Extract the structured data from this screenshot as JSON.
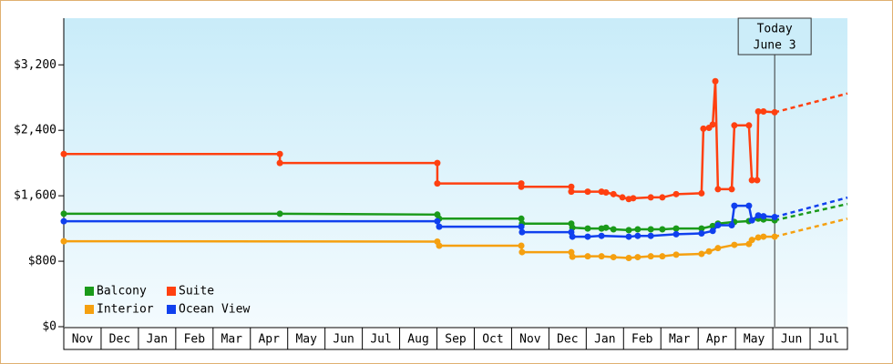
{
  "chart_data": {
    "type": "line",
    "xlim": [
      0,
      21
    ],
    "xticks": [
      {
        "value": 0.5,
        "label": "Nov"
      },
      {
        "value": 1.5,
        "label": "Dec"
      },
      {
        "value": 2.5,
        "label": "Jan"
      },
      {
        "value": 3.5,
        "label": "Feb"
      },
      {
        "value": 4.5,
        "label": "Mar"
      },
      {
        "value": 5.5,
        "label": "Apr"
      },
      {
        "value": 6.5,
        "label": "May"
      },
      {
        "value": 7.5,
        "label": "Jun"
      },
      {
        "value": 8.5,
        "label": "Jul"
      },
      {
        "value": 9.5,
        "label": "Aug"
      },
      {
        "value": 10.5,
        "label": "Sep"
      },
      {
        "value": 11.5,
        "label": "Oct"
      },
      {
        "value": 12.5,
        "label": "Nov"
      },
      {
        "value": 13.5,
        "label": "Dec"
      },
      {
        "value": 14.5,
        "label": "Jan"
      },
      {
        "value": 15.5,
        "label": "Feb"
      },
      {
        "value": 16.5,
        "label": "Mar"
      },
      {
        "value": 17.5,
        "label": "Apr"
      },
      {
        "value": 18.5,
        "label": "May"
      },
      {
        "value": 19.5,
        "label": "Jun"
      },
      {
        "value": 20.5,
        "label": "Jul"
      }
    ],
    "ylim": [
      0,
      3770
    ],
    "yticks": [
      {
        "value": 0,
        "label": "$0"
      },
      {
        "value": 800,
        "label": "$800"
      },
      {
        "value": 1600,
        "label": "$1,600"
      },
      {
        "value": 2400,
        "label": "$2,400"
      },
      {
        "value": 3200,
        "label": "$3,200"
      }
    ],
    "today": {
      "x": 19.05,
      "label": "Today",
      "date": "June 3"
    },
    "series": [
      {
        "name": "Balcony",
        "color": "#1a9a1a",
        "x": [
          0,
          5.79,
          10.01,
          10.06,
          12.26,
          12.28,
          13.6,
          13.63,
          14.04,
          14.41,
          14.53,
          14.73,
          15.14,
          15.38,
          15.73,
          16.04,
          16.41,
          17.09,
          17.39,
          17.53,
          17.97,
          18.36,
          18.61,
          18.75,
          19.05
        ],
        "values": [
          1380,
          1380,
          1370,
          1320,
          1320,
          1260,
          1260,
          1210,
          1200,
          1200,
          1210,
          1190,
          1180,
          1190,
          1190,
          1190,
          1200,
          1200,
          1230,
          1260,
          1280,
          1290,
          1320,
          1310,
          1300
        ],
        "projection": {
          "x": [
            19.05,
            21
          ],
          "values": [
            1300,
            1500
          ]
        }
      },
      {
        "name": "Suite",
        "color": "#ff4010",
        "x": [
          0,
          5.79,
          5.79,
          10.01,
          10.01,
          12.26,
          12.26,
          13.6,
          13.6,
          14.04,
          14.41,
          14.53,
          14.73,
          14.97,
          15.14,
          15.26,
          15.73,
          16.04,
          16.41,
          17.09,
          17.14,
          17.29,
          17.39,
          17.46,
          17.53,
          17.9,
          17.97,
          18.36,
          18.44,
          18.58,
          18.61,
          18.75,
          19.05
        ],
        "values": [
          2110,
          2110,
          2000,
          2000,
          1750,
          1750,
          1710,
          1710,
          1650,
          1650,
          1650,
          1640,
          1620,
          1580,
          1560,
          1570,
          1580,
          1580,
          1620,
          1630,
          2420,
          2430,
          2470,
          3000,
          1680,
          1680,
          2460,
          2460,
          1790,
          1790,
          2630,
          2630,
          2620
        ],
        "projection": {
          "x": [
            19.05,
            21
          ],
          "values": [
            2620,
            2850
          ]
        }
      },
      {
        "name": "Interior",
        "color": "#f5a010",
        "x": [
          0,
          10.01,
          10.06,
          12.26,
          12.28,
          13.6,
          13.63,
          14.04,
          14.41,
          14.73,
          15.14,
          15.38,
          15.73,
          16.04,
          16.41,
          17.09,
          17.29,
          17.53,
          17.97,
          18.36,
          18.44,
          18.61,
          18.75,
          19.05
        ],
        "values": [
          1044,
          1040,
          990,
          990,
          911,
          910,
          855,
          860,
          860,
          850,
          840,
          850,
          860,
          860,
          880,
          890,
          920,
          960,
          1000,
          1010,
          1060,
          1090,
          1100,
          1100
        ],
        "projection": {
          "x": [
            19.05,
            21
          ],
          "values": [
            1100,
            1320
          ]
        }
      },
      {
        "name": "Ocean View",
        "color": "#1040ee",
        "x": [
          0,
          10.01,
          10.06,
          12.26,
          12.28,
          13.6,
          13.63,
          14.04,
          14.41,
          15.14,
          15.38,
          15.73,
          16.41,
          17.09,
          17.39,
          17.53,
          17.9,
          17.97,
          18.36,
          18.44,
          18.61,
          18.75,
          19.05
        ],
        "values": [
          1289,
          1289,
          1222,
          1222,
          1155,
          1155,
          1100,
          1100,
          1110,
          1100,
          1110,
          1110,
          1130,
          1140,
          1170,
          1240,
          1240,
          1478,
          1478,
          1300,
          1360,
          1350,
          1340
        ],
        "projection": {
          "x": [
            19.05,
            21
          ],
          "values": [
            1340,
            1578
          ]
        }
      }
    ]
  }
}
